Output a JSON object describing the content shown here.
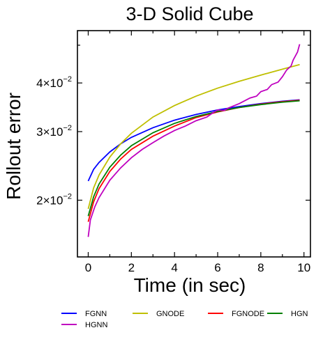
{
  "chart_data": {
    "type": "line",
    "title": "3-D Solid Cube",
    "xlabel": "Time (in sec)",
    "ylabel": "Rollout error",
    "yscale": "log",
    "xlim": [
      -0.5,
      10.3
    ],
    "ylim": [
      0.0143,
      0.0545
    ],
    "xticks": [
      0,
      2,
      4,
      6,
      8,
      10
    ],
    "xtick_labels": [
      "0",
      "2",
      "4",
      "6",
      "8",
      "10"
    ],
    "yticks": [
      {
        "value": 0.02,
        "mantissa": "2",
        "exp": "−2"
      },
      {
        "value": 0.03,
        "mantissa": "3",
        "exp": "−2"
      },
      {
        "value": 0.04,
        "mantissa": "4",
        "exp": "−2"
      }
    ],
    "grid": false,
    "legend_position": "bottom",
    "series": [
      {
        "name": "FGNN",
        "color": "#0000ff",
        "x": [
          0,
          0.25,
          0.5,
          1,
          1.5,
          2,
          3,
          4,
          5,
          6,
          7,
          8,
          9,
          9.8
        ],
        "y": [
          0.0224,
          0.024,
          0.025,
          0.0266,
          0.0279,
          0.029,
          0.0307,
          0.0321,
          0.0332,
          0.0341,
          0.0348,
          0.0354,
          0.0359,
          0.0362
        ]
      },
      {
        "name": "GNODE",
        "color": "#bfbf00",
        "x": [
          0,
          0.25,
          0.5,
          1,
          1.5,
          2,
          3,
          4,
          5,
          6,
          7,
          8,
          9,
          9.8
        ],
        "y": [
          0.019,
          0.0215,
          0.0232,
          0.0258,
          0.0279,
          0.0297,
          0.0327,
          0.035,
          0.037,
          0.0388,
          0.0404,
          0.0419,
          0.0434,
          0.0446
        ]
      },
      {
        "name": "FGNODE",
        "color": "#ff0000",
        "x": [
          0,
          0.25,
          0.5,
          1,
          1.5,
          2,
          3,
          4,
          5,
          6,
          7,
          8,
          9,
          9.8
        ],
        "y": [
          0.0176,
          0.0198,
          0.0214,
          0.0237,
          0.0255,
          0.027,
          0.0292,
          0.031,
          0.0326,
          0.0337,
          0.0346,
          0.0353,
          0.0358,
          0.0361
        ]
      },
      {
        "name": "HGN",
        "color": "#008000",
        "x": [
          0,
          0.25,
          0.5,
          1,
          1.5,
          2,
          3,
          4,
          5,
          6,
          7,
          8,
          9,
          9.8
        ],
        "y": [
          0.0182,
          0.0204,
          0.022,
          0.0243,
          0.0261,
          0.0276,
          0.0298,
          0.0315,
          0.0328,
          0.0338,
          0.0346,
          0.0352,
          0.0357,
          0.036
        ]
      },
      {
        "name": "HGNN",
        "color": "#bf00bf",
        "x": [
          0,
          0.1,
          0.3,
          0.5,
          1,
          1.5,
          2,
          2.5,
          3,
          3.5,
          4,
          4.5,
          5,
          5.5,
          5.8,
          6,
          6.3,
          6.5,
          7,
          7.5,
          7.8,
          8,
          8.3,
          8.5,
          8.8,
          9,
          9.2,
          9.4,
          9.5,
          9.7,
          9.8
        ],
        "y": [
          0.0161,
          0.0178,
          0.0192,
          0.0203,
          0.0225,
          0.0242,
          0.0257,
          0.027,
          0.0281,
          0.0292,
          0.0302,
          0.031,
          0.032,
          0.0327,
          0.0336,
          0.0341,
          0.034,
          0.0345,
          0.0354,
          0.0366,
          0.037,
          0.038,
          0.0385,
          0.0396,
          0.0402,
          0.0415,
          0.0432,
          0.0442,
          0.0458,
          0.048,
          0.0503
        ]
      }
    ]
  }
}
